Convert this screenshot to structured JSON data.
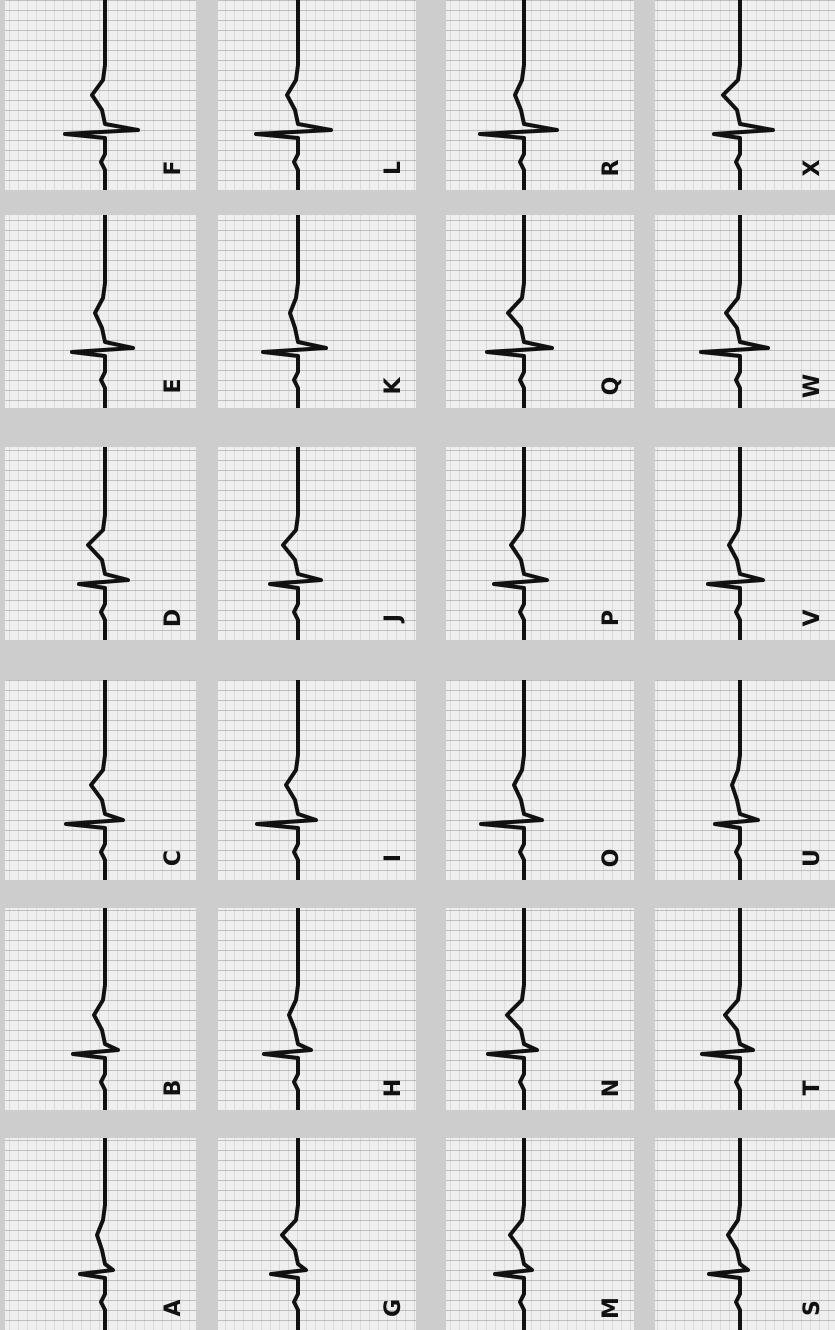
{
  "panels": [
    {
      "label": "A"
    },
    {
      "label": "B"
    },
    {
      "label": "C"
    },
    {
      "label": "D"
    },
    {
      "label": "E"
    },
    {
      "label": "F"
    },
    {
      "label": "G"
    },
    {
      "label": "H"
    },
    {
      "label": "I"
    },
    {
      "label": "J"
    },
    {
      "label": "K"
    },
    {
      "label": "L"
    },
    {
      "label": "M"
    },
    {
      "label": "N"
    },
    {
      "label": "O"
    },
    {
      "label": "P"
    },
    {
      "label": "Q"
    },
    {
      "label": "R"
    },
    {
      "label": "S"
    },
    {
      "label": "T"
    },
    {
      "label": "U"
    },
    {
      "label": "V"
    },
    {
      "label": "W"
    },
    {
      "label": "X"
    }
  ]
}
